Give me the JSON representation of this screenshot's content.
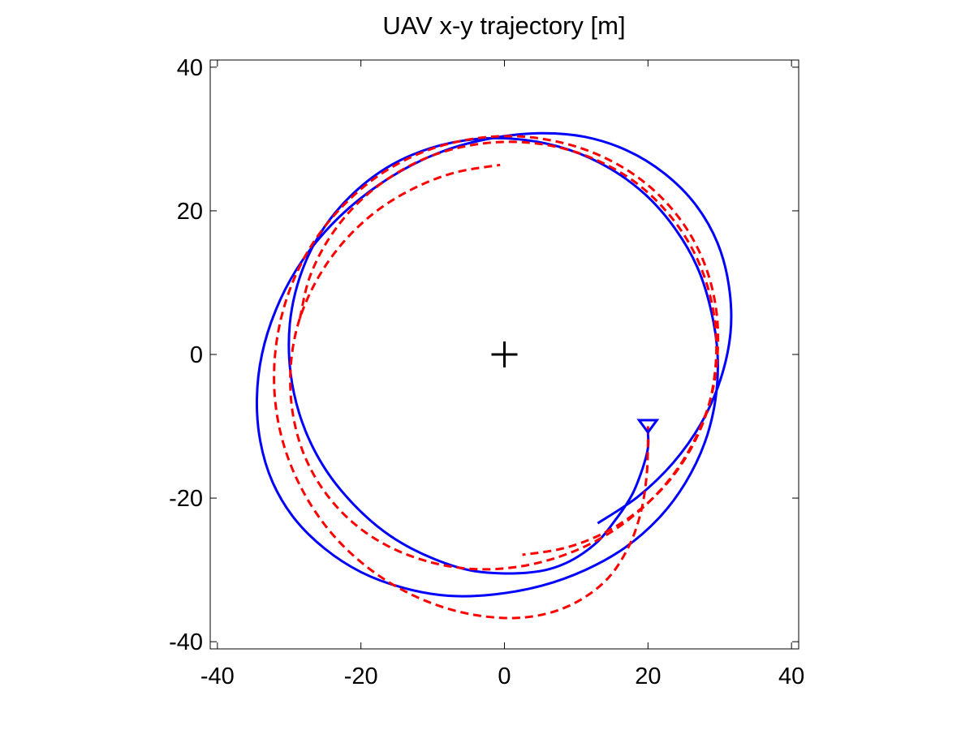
{
  "chart_data": {
    "type": "line",
    "title": "UAV x-y trajectory [m]",
    "xlabel": "",
    "ylabel": "",
    "xlim": [
      -41,
      41
    ],
    "ylim": [
      -41,
      41
    ],
    "xticks": [
      -40,
      -20,
      0,
      20,
      40
    ],
    "yticks": [
      -40,
      -20,
      0,
      20,
      40
    ],
    "xtick_labels": [
      "-40",
      "-20",
      "0",
      "20",
      "40"
    ],
    "ytick_labels": [
      "-40",
      "-20",
      "0",
      "20",
      "40"
    ],
    "grid": false,
    "legend": "none",
    "aspect": "equal",
    "markers": [
      {
        "shape": "plus",
        "x": 0,
        "y": 0,
        "color": "#000000"
      },
      {
        "shape": "triangle-down",
        "x": 20,
        "y": -10,
        "color": "#0000ff"
      }
    ],
    "series": [
      {
        "style": "solid",
        "color": "#0000ff",
        "points": [
          [
            20,
            -11
          ],
          [
            20,
            -13
          ],
          [
            19.2,
            -16
          ],
          [
            17.8,
            -19.5
          ],
          [
            15.5,
            -23
          ],
          [
            12.5,
            -26.5
          ],
          [
            8,
            -29.3
          ],
          [
            3,
            -30.4
          ],
          [
            -4,
            -30.2
          ],
          [
            -10,
            -28.4
          ],
          [
            -16,
            -25.2
          ],
          [
            -21,
            -20.9
          ],
          [
            -25.2,
            -15.6
          ],
          [
            -28.2,
            -9.4
          ],
          [
            -29.8,
            -2.6
          ],
          [
            -29.9,
            4.3
          ],
          [
            -28.5,
            10.8
          ],
          [
            -25.7,
            16.8
          ],
          [
            -21.6,
            21.9
          ],
          [
            -16.4,
            26
          ],
          [
            -10.4,
            28.7
          ],
          [
            -3.9,
            30
          ],
          [
            2.6,
            29.9
          ],
          [
            9,
            28.5
          ],
          [
            14.7,
            25.9
          ],
          [
            19.7,
            22.2
          ],
          [
            23.8,
            17.5
          ],
          [
            26.9,
            12.1
          ],
          [
            28.8,
            6.1
          ],
          [
            29.7,
            -0.1
          ],
          [
            29.4,
            -6.3
          ],
          [
            27.9,
            -12.3
          ],
          [
            25.2,
            -17.9
          ],
          [
            21.5,
            -22.8
          ],
          [
            16.8,
            -26.9
          ],
          [
            11.3,
            -30
          ],
          [
            5.2,
            -32.2
          ],
          [
            -1.3,
            -33.4
          ],
          [
            -7.8,
            -33.6
          ],
          [
            -14.1,
            -32.5
          ],
          [
            -20,
            -30.3
          ],
          [
            -25.1,
            -27
          ],
          [
            -29.3,
            -22.8
          ],
          [
            -32.3,
            -17.8
          ],
          [
            -34,
            -12.2
          ],
          [
            -34.5,
            -6.2
          ],
          [
            -33.8,
            0
          ],
          [
            -31.9,
            6.1
          ],
          [
            -29,
            11.8
          ],
          [
            -25,
            17.1
          ],
          [
            -20.1,
            21.7
          ],
          [
            -14.5,
            25.5
          ],
          [
            -8.3,
            28.4
          ],
          [
            -1.8,
            30.1
          ],
          [
            4.8,
            30.8
          ],
          [
            11.2,
            30.3
          ],
          [
            17.1,
            28.4
          ],
          [
            22.3,
            25.2
          ],
          [
            26.6,
            20.9
          ],
          [
            29.7,
            15.5
          ],
          [
            31.3,
            9.4
          ],
          [
            31.5,
            3
          ],
          [
            30.1,
            -3.5
          ],
          [
            27.4,
            -9.6
          ],
          [
            23.5,
            -15.1
          ],
          [
            18.6,
            -19.8
          ],
          [
            13,
            -23.5
          ]
        ]
      },
      {
        "style": "dashed",
        "color": "#ff0000",
        "points": [
          [
            20,
            -10
          ],
          [
            20,
            -12.5
          ],
          [
            19.8,
            -17
          ],
          [
            19,
            -22
          ],
          [
            17.2,
            -27
          ],
          [
            14,
            -31.6
          ],
          [
            9,
            -35
          ],
          [
            3,
            -36.6
          ],
          [
            -4,
            -36.3
          ],
          [
            -11,
            -34.3
          ],
          [
            -17.5,
            -30.8
          ],
          [
            -23.2,
            -25.9
          ],
          [
            -27.6,
            -19.9
          ],
          [
            -30.6,
            -13.1
          ],
          [
            -32,
            -5.9
          ],
          [
            -31.8,
            1.4
          ],
          [
            -30.1,
            8.5
          ],
          [
            -27,
            15
          ],
          [
            -22.6,
            20.6
          ],
          [
            -17.1,
            25.2
          ],
          [
            -10.8,
            28.4
          ],
          [
            -3.9,
            30.1
          ],
          [
            3,
            30.3
          ],
          [
            9.8,
            29
          ],
          [
            15.9,
            26.4
          ],
          [
            21.1,
            22.6
          ],
          [
            25.2,
            17.8
          ],
          [
            28,
            12.3
          ],
          [
            29.5,
            6.3
          ],
          [
            29.7,
            0.2
          ],
          [
            28.8,
            -5.9
          ],
          [
            26.6,
            -11.7
          ],
          [
            23.4,
            -16.9
          ],
          [
            19.1,
            -21.5
          ],
          [
            14.1,
            -25.2
          ],
          [
            8.4,
            -27.9
          ],
          [
            2.3,
            -29.5
          ],
          [
            -3.9,
            -29.9
          ],
          [
            -10,
            -29
          ],
          [
            -15.8,
            -26.9
          ],
          [
            -20.9,
            -23.6
          ],
          [
            -25,
            -19.2
          ],
          [
            -27.9,
            -14
          ],
          [
            -29.5,
            -8.2
          ],
          [
            -29.8,
            -2
          ],
          [
            -28.8,
            4.1
          ],
          [
            -26.4,
            9.9
          ],
          [
            -22.9,
            15.1
          ],
          [
            -18.3,
            19.6
          ],
          [
            -12.9,
            23
          ],
          [
            -7,
            25.3
          ],
          [
            -0.6,
            26.4
          ]
        ]
      },
      {
        "style": "dashed",
        "color": "#ff0000",
        "points": [
          [
            -28.5,
            5
          ],
          [
            -27.2,
            10.6
          ],
          [
            -24.6,
            15.9
          ],
          [
            -20.9,
            20.6
          ],
          [
            -16.2,
            24.5
          ],
          [
            -10.8,
            27.4
          ],
          [
            -4.9,
            29.1
          ],
          [
            1.2,
            29.6
          ],
          [
            7.3,
            28.9
          ],
          [
            13,
            27
          ],
          [
            18.2,
            24
          ],
          [
            22.5,
            20
          ],
          [
            25.9,
            15.2
          ],
          [
            28.2,
            9.8
          ],
          [
            29.4,
            4
          ],
          [
            29.4,
            -1.9
          ],
          [
            28.3,
            -7.7
          ],
          [
            26,
            -13.1
          ],
          [
            22.7,
            -17.9
          ],
          [
            18.5,
            -21.9
          ],
          [
            13.6,
            -25
          ],
          [
            8.2,
            -27
          ],
          [
            2.5,
            -27.9
          ]
        ]
      }
    ]
  }
}
